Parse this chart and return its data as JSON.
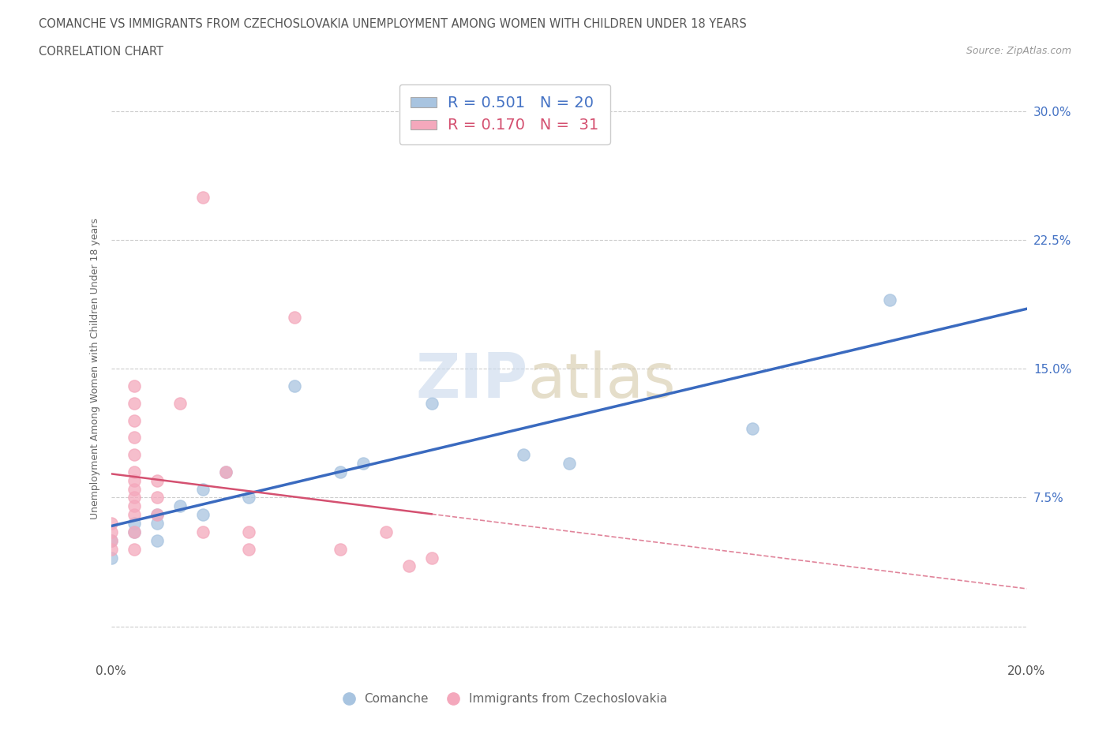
{
  "title_line1": "COMANCHE VS IMMIGRANTS FROM CZECHOSLOVAKIA UNEMPLOYMENT AMONG WOMEN WITH CHILDREN UNDER 18 YEARS",
  "title_line2": "CORRELATION CHART",
  "source": "Source: ZipAtlas.com",
  "ylabel": "Unemployment Among Women with Children Under 18 years",
  "xlim": [
    0.0,
    0.2
  ],
  "ylim": [
    -0.02,
    0.32
  ],
  "yticks": [
    0.0,
    0.075,
    0.15,
    0.225,
    0.3
  ],
  "ytick_labels": [
    "",
    "7.5%",
    "15.0%",
    "22.5%",
    "30.0%"
  ],
  "xticks": [
    0.0,
    0.05,
    0.1,
    0.15,
    0.2
  ],
  "xtick_labels": [
    "0.0%",
    "",
    "",
    "",
    "20.0%"
  ],
  "comanche_color": "#a8c4e0",
  "czech_color": "#f4a8bc",
  "comanche_line_color": "#3a6abf",
  "czech_line_color": "#d45070",
  "R_comanche": 0.501,
  "N_comanche": 20,
  "R_czech": 0.17,
  "N_czech": 31,
  "comanche_scatter": [
    [
      0.0,
      0.04
    ],
    [
      0.0,
      0.05
    ],
    [
      0.005,
      0.055
    ],
    [
      0.005,
      0.06
    ],
    [
      0.01,
      0.05
    ],
    [
      0.01,
      0.06
    ],
    [
      0.01,
      0.065
    ],
    [
      0.015,
      0.07
    ],
    [
      0.02,
      0.065
    ],
    [
      0.02,
      0.08
    ],
    [
      0.025,
      0.09
    ],
    [
      0.03,
      0.075
    ],
    [
      0.04,
      0.14
    ],
    [
      0.05,
      0.09
    ],
    [
      0.055,
      0.095
    ],
    [
      0.07,
      0.13
    ],
    [
      0.09,
      0.1
    ],
    [
      0.1,
      0.095
    ],
    [
      0.14,
      0.115
    ],
    [
      0.17,
      0.19
    ]
  ],
  "czech_scatter": [
    [
      0.0,
      0.045
    ],
    [
      0.0,
      0.05
    ],
    [
      0.0,
      0.055
    ],
    [
      0.0,
      0.06
    ],
    [
      0.005,
      0.045
    ],
    [
      0.005,
      0.055
    ],
    [
      0.005,
      0.065
    ],
    [
      0.005,
      0.07
    ],
    [
      0.005,
      0.075
    ],
    [
      0.005,
      0.08
    ],
    [
      0.005,
      0.085
    ],
    [
      0.005,
      0.09
    ],
    [
      0.005,
      0.1
    ],
    [
      0.005,
      0.11
    ],
    [
      0.005,
      0.12
    ],
    [
      0.005,
      0.13
    ],
    [
      0.005,
      0.14
    ],
    [
      0.01,
      0.065
    ],
    [
      0.01,
      0.075
    ],
    [
      0.01,
      0.085
    ],
    [
      0.015,
      0.13
    ],
    [
      0.02,
      0.055
    ],
    [
      0.02,
      0.25
    ],
    [
      0.025,
      0.09
    ],
    [
      0.03,
      0.045
    ],
    [
      0.03,
      0.055
    ],
    [
      0.04,
      0.18
    ],
    [
      0.05,
      0.045
    ],
    [
      0.06,
      0.055
    ],
    [
      0.065,
      0.035
    ],
    [
      0.07,
      0.04
    ]
  ]
}
